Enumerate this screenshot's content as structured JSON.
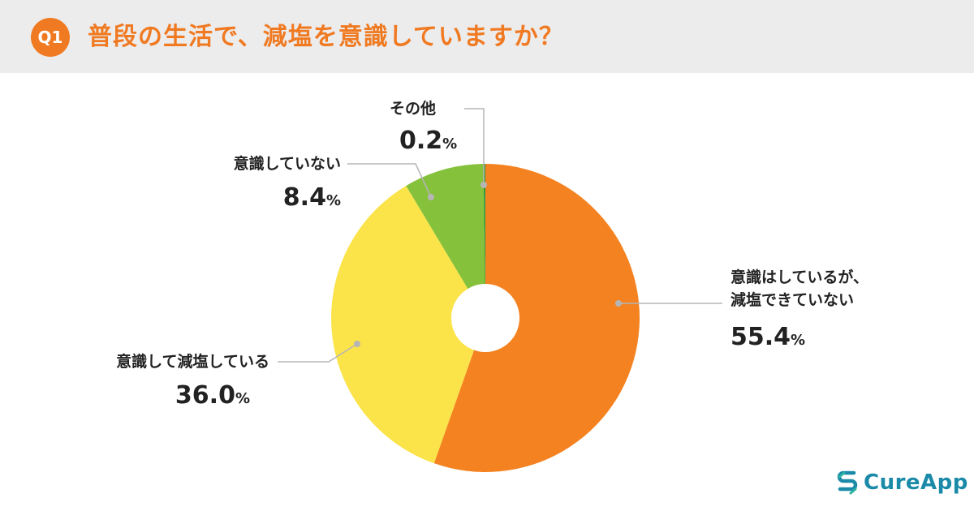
{
  "header": {
    "badge": "Q1",
    "question": "普段の生活で、減塩を意識していますか？"
  },
  "chart_data": {
    "type": "pie",
    "donut": true,
    "categories": [
      "意識はしているが、減塩できていない",
      "意識して減塩している",
      "意識していない",
      "その他"
    ],
    "values": [
      55.4,
      36.0,
      8.4,
      0.2
    ],
    "unit": "%",
    "colors": [
      "#f58220",
      "#fbe34a",
      "#86c13c",
      "#2e9a3a"
    ]
  },
  "labels": {
    "a_name_line1": "意識はしているが、",
    "a_name_line2": "減塩できていない",
    "a_value": "55.4",
    "b_name": "意識して減塩している",
    "b_value": "36.0",
    "c_name": "意識していない",
    "c_value": "8.4",
    "d_name": "その他",
    "d_value": "0.2",
    "unit": "%"
  },
  "logo": {
    "text": "CureApp",
    "icon": "cureapp-logo-icon",
    "color": "#1a8aa8"
  }
}
